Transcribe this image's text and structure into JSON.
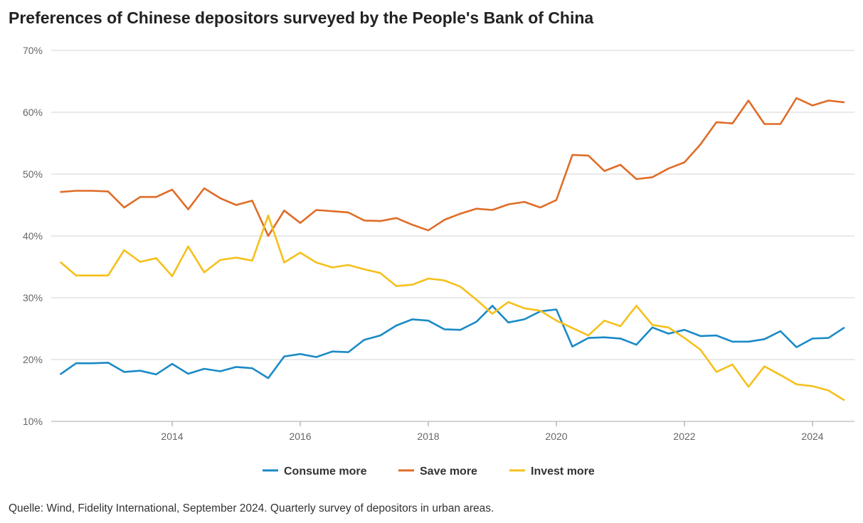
{
  "chart_data": {
    "type": "line",
    "title": "Preferences of Chinese depositors surveyed by the People's Bank of China",
    "source": "Quelle: Wind, Fidelity International, September 2024. Quarterly survey of depositors in urban areas.",
    "xlabel": "",
    "ylabel": "",
    "ylim": [
      10,
      70
    ],
    "yticks": [
      10,
      20,
      30,
      40,
      50,
      60,
      70
    ],
    "ytick_labels": [
      "10%",
      "20%",
      "30%",
      "40%",
      "50%",
      "60%",
      "70%"
    ],
    "xticks": [
      2014,
      2016,
      2018,
      2020,
      2022,
      2024
    ],
    "xtick_labels": [
      "2014",
      "2016",
      "2018",
      "2020",
      "2022",
      "2024"
    ],
    "xlim": [
      2012.1,
      2024.65
    ],
    "grid": true,
    "legend_position": "bottom",
    "x": [
      2012.25,
      2012.5,
      2012.75,
      2013,
      2013.25,
      2013.5,
      2013.75,
      2014,
      2014.25,
      2014.5,
      2014.75,
      2015,
      2015.25,
      2015.5,
      2015.75,
      2016,
      2016.25,
      2016.5,
      2016.75,
      2017,
      2017.25,
      2017.5,
      2017.75,
      2018,
      2018.25,
      2018.5,
      2018.75,
      2019,
      2019.25,
      2019.5,
      2019.75,
      2020,
      2020.25,
      2020.5,
      2020.75,
      2021,
      2021.25,
      2021.5,
      2021.75,
      2022,
      2022.25,
      2022.5,
      2022.75,
      2023,
      2023.25,
      2023.5,
      2023.75,
      2024,
      2024.25,
      2024.5
    ],
    "series": [
      {
        "name": "Consume more",
        "color": "#1a8ac6",
        "values": [
          17.6,
          19.4,
          19.4,
          19.5,
          18.0,
          18.2,
          17.6,
          19.3,
          17.7,
          18.5,
          18.1,
          18.8,
          18.6,
          17.0,
          20.5,
          20.9,
          20.4,
          21.3,
          21.2,
          23.2,
          23.9,
          25.5,
          26.5,
          26.3,
          24.9,
          24.8,
          26.1,
          28.7,
          26.0,
          26.5,
          27.8,
          28.1,
          22.1,
          23.5,
          23.6,
          23.4,
          22.4,
          25.2,
          24.2,
          24.8,
          23.8,
          23.9,
          22.9,
          22.9,
          23.3,
          24.6,
          22.0,
          23.4,
          23.5,
          25.2
        ]
      },
      {
        "name": "Save more",
        "color": "#e06c27",
        "values": [
          47.1,
          47.3,
          47.3,
          47.2,
          44.6,
          46.3,
          46.3,
          47.5,
          44.3,
          47.7,
          46.1,
          45.0,
          45.7,
          40.0,
          44.1,
          42.1,
          44.2,
          44.0,
          43.8,
          42.5,
          42.4,
          42.9,
          41.8,
          40.9,
          42.6,
          43.6,
          44.4,
          44.2,
          45.1,
          45.5,
          44.6,
          45.8,
          53.1,
          53.0,
          50.5,
          51.5,
          49.2,
          49.5,
          50.9,
          51.9,
          54.8,
          58.4,
          58.2,
          61.9,
          58.1,
          58.1,
          62.3,
          61.1,
          61.9,
          61.6
        ]
      },
      {
        "name": "Invest more",
        "color": "#f5c01a",
        "values": [
          35.8,
          33.6,
          33.6,
          33.6,
          37.7,
          35.8,
          36.4,
          33.5,
          38.3,
          34.1,
          36.1,
          36.5,
          36.0,
          43.3,
          35.7,
          37.3,
          35.7,
          34.9,
          35.3,
          34.6,
          34.0,
          31.9,
          32.1,
          33.1,
          32.8,
          31.8,
          29.7,
          27.4,
          29.3,
          28.3,
          27.9,
          26.3,
          25.1,
          23.9,
          26.3,
          25.4,
          28.7,
          25.6,
          25.2,
          23.5,
          21.6,
          18.0,
          19.2,
          15.6,
          18.9,
          17.5,
          16.0,
          15.7,
          15.0,
          13.4
        ]
      }
    ]
  }
}
